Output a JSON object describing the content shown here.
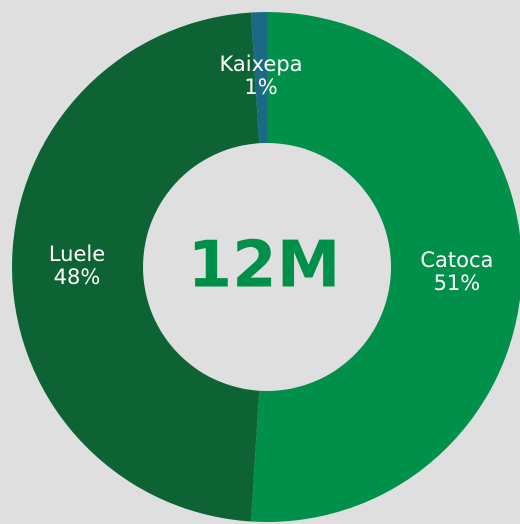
{
  "chart_data": {
    "type": "donut",
    "center_text": "12M",
    "categories": [
      "Catoca",
      "Luele",
      "Kaixepa"
    ],
    "values": [
      51,
      48,
      1
    ],
    "value_labels": [
      "51%",
      "48%",
      "1%"
    ],
    "colors": [
      "#00904a",
      "#0d6334",
      "#1a6a86"
    ]
  }
}
